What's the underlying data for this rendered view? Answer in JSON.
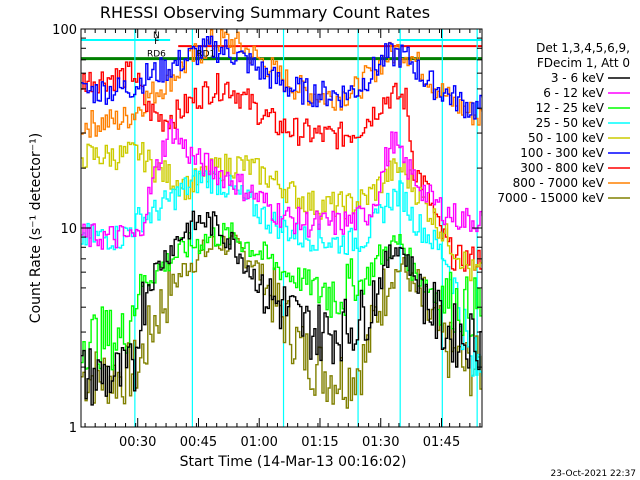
{
  "chart_data": {
    "type": "line",
    "title": "RHESSI Observing Summary Count Rates",
    "xlabel": "Start Time (14-Mar-13 00:16:02)",
    "ylabel": "Count Rate (s⁻¹ detector⁻¹)",
    "yscale": "log",
    "ylim": [
      1,
      100
    ],
    "xlim_minutes_from_start": [
      0,
      99
    ],
    "x_ticks": [
      {
        "label": "00:30",
        "minute": 14
      },
      {
        "label": "00:45",
        "minute": 29
      },
      {
        "label": "01:00",
        "minute": 44
      },
      {
        "label": "01:15",
        "minute": 59
      },
      {
        "label": "01:30",
        "minute": 74
      },
      {
        "label": "01:45",
        "minute": 89
      }
    ],
    "y_ticks": [
      {
        "label": "1",
        "value": 1
      },
      {
        "label": "10",
        "value": 10
      },
      {
        "label": "100",
        "value": 100
      }
    ],
    "legend_header": [
      "Det 1,3,4,5,6,9,",
      "FDecim 1, Att 0"
    ],
    "legend_position": "right",
    "series": [
      {
        "name": "3 - 6 keV",
        "color": "#000000",
        "x": [
          0,
          10,
          13,
          14,
          16,
          18,
          22,
          26,
          30,
          34,
          38,
          42,
          46,
          50,
          54,
          58,
          62,
          66,
          69,
          72,
          75,
          78,
          82,
          86,
          90,
          94,
          96,
          98
        ],
        "values": [
          1.8,
          1.8,
          1.9,
          3.5,
          5,
          6,
          8,
          10,
          11,
          10,
          8,
          6,
          4.5,
          4,
          3.3,
          3,
          3,
          3.2,
          3.5,
          4.5,
          6.5,
          8.5,
          6,
          4,
          3,
          2.8,
          2.8,
          2.8
        ]
      },
      {
        "name": "6 - 12 keV",
        "color": "#ff00ff",
        "x": [
          0,
          10,
          14,
          16,
          19,
          22,
          25,
          28,
          32,
          36,
          40,
          44,
          48,
          52,
          56,
          60,
          64,
          68,
          71,
          73,
          75,
          77,
          79,
          82,
          86,
          90,
          94,
          96,
          98
        ],
        "values": [
          9,
          9,
          9,
          13,
          22,
          32,
          26,
          22,
          20,
          18,
          16,
          14,
          12,
          11,
          10.5,
          10.5,
          10.5,
          11,
          12,
          15,
          22,
          28,
          22,
          18,
          14,
          12,
          11,
          11,
          11
        ]
      },
      {
        "name": "12 - 25 keV",
        "color": "#00ff00",
        "x": [
          0,
          10,
          14,
          18,
          22,
          26,
          30,
          34,
          38,
          42,
          46,
          50,
          54,
          58,
          62,
          66,
          70,
          73,
          76,
          79,
          82,
          86,
          90,
          94,
          96,
          98
        ],
        "values": [
          2.8,
          2.8,
          5,
          6,
          7,
          8,
          8.7,
          9.3,
          9,
          8,
          7,
          6,
          5.5,
          5,
          4.8,
          4.8,
          5.5,
          7,
          8,
          8.5,
          6,
          5,
          4.5,
          4,
          4,
          4
        ]
      },
      {
        "name": "25 - 50 keV",
        "color": "#00ffff",
        "x": [
          0,
          10,
          14,
          18,
          22,
          26,
          30,
          34,
          38,
          42,
          46,
          50,
          54,
          58,
          62,
          66,
          70,
          73,
          76,
          79,
          82,
          86,
          90,
          94,
          96,
          98
        ],
        "values": [
          9,
          9,
          11,
          12,
          14,
          16,
          18,
          17,
          15,
          13,
          11,
          10,
          9,
          9,
          8.5,
          8.5,
          9,
          11,
          14,
          15,
          11,
          9,
          7,
          3.5,
          2,
          2
        ]
      },
      {
        "name": "50 - 100 keV",
        "color": "#cccc00",
        "x": [
          0,
          10,
          14,
          18,
          22,
          26,
          30,
          34,
          38,
          42,
          46,
          50,
          54,
          58,
          62,
          66,
          70,
          73,
          76,
          79,
          82,
          86,
          90,
          94,
          96,
          98
        ],
        "values": [
          23,
          23,
          24,
          20,
          18,
          16,
          18,
          20,
          21,
          20,
          18,
          16,
          14,
          13,
          13,
          13,
          14,
          16,
          19,
          20,
          16,
          12,
          9,
          7,
          6,
          6
        ]
      },
      {
        "name": "100 - 300 keV",
        "color": "#0000ff",
        "x": [
          0,
          10,
          13,
          16,
          20,
          24,
          28,
          32,
          36,
          40,
          44,
          48,
          52,
          56,
          60,
          64,
          68,
          72,
          75,
          78,
          81,
          84,
          88,
          92,
          96,
          98
        ],
        "values": [
          48,
          50,
          52,
          58,
          62,
          68,
          75,
          80,
          78,
          70,
          62,
          55,
          50,
          48,
          47,
          47,
          50,
          62,
          72,
          75,
          70,
          58,
          50,
          45,
          40,
          40
        ]
      },
      {
        "name": "300 - 800 keV",
        "color": "#ff0000",
        "x": [
          0,
          10,
          13,
          16,
          20,
          24,
          28,
          32,
          36,
          40,
          44,
          48,
          52,
          56,
          60,
          64,
          68,
          72,
          74,
          76,
          78,
          80,
          82,
          85,
          88,
          92,
          96,
          98
        ],
        "values": [
          55,
          58,
          60,
          40,
          35,
          38,
          45,
          50,
          52,
          45,
          38,
          33,
          31,
          30,
          29,
          29,
          31,
          38,
          43,
          46,
          46,
          44,
          20,
          16,
          10,
          7,
          7,
          7
        ]
      },
      {
        "name": "800 - 7000 keV",
        "color": "#ff8000",
        "x": [
          0,
          10,
          13,
          16,
          20,
          24,
          28,
          32,
          36,
          40,
          44,
          48,
          52,
          56,
          60,
          64,
          68,
          72,
          75,
          78,
          81,
          84,
          88,
          92,
          96,
          98
        ],
        "values": [
          33,
          35,
          38,
          45,
          52,
          62,
          73,
          85,
          88,
          80,
          70,
          60,
          52,
          48,
          46,
          46,
          50,
          62,
          72,
          78,
          75,
          62,
          50,
          42,
          38,
          36
        ]
      },
      {
        "name": "7000 - 15000 keV",
        "color": "#808000",
        "x": [
          0,
          10,
          14,
          18,
          22,
          26,
          30,
          34,
          38,
          42,
          46,
          50,
          54,
          58,
          62,
          66,
          70,
          73,
          76,
          79,
          82,
          86,
          90,
          94,
          96,
          98
        ],
        "values": [
          1.8,
          1.8,
          2,
          3.5,
          5,
          6.5,
          7.5,
          8.5,
          8,
          7,
          5,
          3.5,
          2.5,
          2,
          1.8,
          1.8,
          2.2,
          4,
          5.5,
          6.5,
          5,
          3.5,
          2.5,
          2,
          2,
          2
        ]
      }
    ],
    "flag_lines": [
      {
        "label": "N",
        "color": "#00ffff",
        "value": 88,
        "x_ranges": [
          [
            0,
            22
          ],
          [
            78,
            99
          ]
        ]
      },
      {
        "label": "F",
        "color": "#ff0000",
        "value": 82,
        "x_ranges": [
          [
            24,
            99
          ]
        ]
      },
      {
        "label": "RD6",
        "color": "#008000",
        "value": 71,
        "x_ranges": [
          [
            0,
            99
          ]
        ]
      },
      {
        "label": "RD1",
        "color": "#008000",
        "value": 71,
        "x_ranges": [
          [
            27,
            33
          ]
        ]
      }
    ],
    "vertical_markers": [
      {
        "color": "#00ffff",
        "minutes": [
          13.3,
          27.5,
          50,
          68.4,
          78.8,
          89.2,
          97.8
        ]
      }
    ],
    "grid": false
  },
  "footer": {
    "date": "23-Oct-2021 22:37"
  }
}
